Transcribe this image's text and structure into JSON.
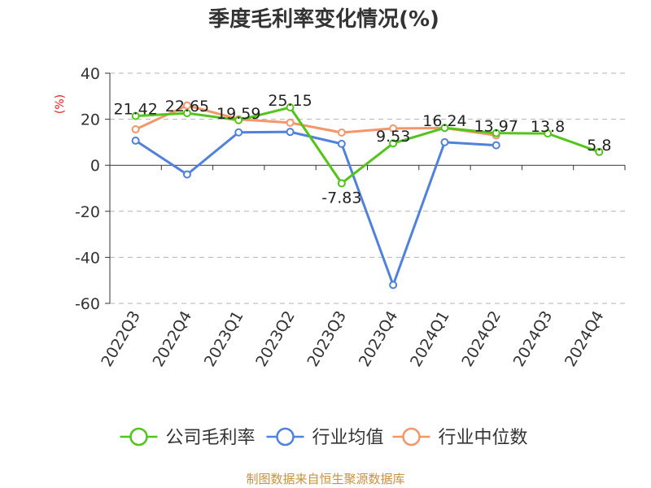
{
  "chart_data": {
    "type": "line",
    "title": "季度毛利率变化情况(%)",
    "ylabel": "(%)",
    "categories": [
      "2022Q3",
      "2022Q4",
      "2023Q1",
      "2023Q2",
      "2023Q3",
      "2023Q4",
      "2024Q1",
      "2024Q2",
      "2024Q3",
      "2024Q4"
    ],
    "yticks": [
      "40",
      "20",
      "0",
      "-20",
      "-40",
      "-60"
    ],
    "ylim": [
      -60,
      40
    ],
    "grid": true,
    "legend_position": "bottom",
    "series": [
      {
        "name": "公司毛利率",
        "color": "#52c41a",
        "values": [
          21.42,
          22.65,
          19.59,
          25.15,
          -7.83,
          9.53,
          16.24,
          13.97,
          13.8,
          5.8
        ],
        "labels": [
          "21.42",
          "22.65",
          "19.59",
          "25.15",
          "-7.83",
          "9.53",
          "16.24",
          "13.97",
          "13.8",
          "5.8"
        ]
      },
      {
        "name": "行业均值",
        "color": "#4f81dd",
        "values": [
          10.7,
          -4.0,
          14.3,
          14.5,
          9.3,
          -52.0,
          10.0,
          8.7,
          null,
          null
        ]
      },
      {
        "name": "行业中位数",
        "color": "#f4956a",
        "values": [
          15.6,
          26.0,
          20.0,
          18.5,
          14.2,
          16.0,
          16.2,
          13.0,
          null,
          null
        ]
      }
    ]
  },
  "footer": {
    "source": "制图数据来自恒生聚源数据库"
  }
}
